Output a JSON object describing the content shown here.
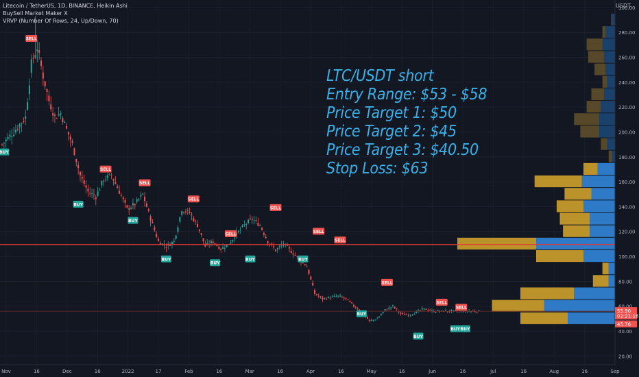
{
  "legend": {
    "line1": "Litecoin / TetherUS, 1D, BINANCE, Heikin Ashi",
    "line2": "BuySell Market Maker X",
    "line3": "VRVP (Number Of Rows, 24, Up/Down, 70)"
  },
  "axis_unit": "USDT",
  "note": {
    "line1": "LTC/USDT short",
    "line2": "Entry Range: $53 - $58",
    "line3": "Price Target 1: $50",
    "line4": "Price Target 2: $45",
    "line5": "Price Target 3: $40.50",
    "line6": "Stop Loss: $63"
  },
  "colors": {
    "background": "#131722",
    "up": "#26a69a",
    "down": "#ef5350",
    "buy_label": "#26a69a",
    "sell_label": "#ef5350",
    "level_line": "#e53935",
    "vp_up": "#2f7fd0",
    "vp_down": "#c49a2b"
  },
  "chart_data": {
    "type": "candlestick",
    "y_axis": {
      "ticks": [
        "300.00",
        "280.00",
        "260.00",
        "240.00",
        "220.00",
        "200.00",
        "180.00",
        "160.00",
        "140.00",
        "120.00",
        "100.00",
        "80.00",
        "60.00",
        "40.00",
        "20.00"
      ],
      "ylim": [
        13,
        306
      ]
    },
    "x_axis": {
      "ticks": [
        "Nov",
        "16",
        "Dec",
        "16",
        "2022",
        "17",
        "Feb",
        "16",
        "Mar",
        "16",
        "Apr",
        "16",
        "May",
        "16",
        "Jun",
        "16",
        "Jul",
        "16",
        "Aug",
        "16",
        "Sep"
      ]
    },
    "price_anchors": [
      [
        0,
        190
      ],
      [
        6,
        200
      ],
      [
        12,
        212
      ],
      [
        15,
        255
      ],
      [
        18,
        268
      ],
      [
        21,
        245
      ],
      [
        24,
        225
      ],
      [
        27,
        212
      ],
      [
        30,
        215
      ],
      [
        33,
        202
      ],
      [
        36,
        190
      ],
      [
        40,
        165
      ],
      [
        44,
        152
      ],
      [
        48,
        148
      ],
      [
        52,
        162
      ],
      [
        56,
        165
      ],
      [
        60,
        152
      ],
      [
        64,
        138
      ],
      [
        68,
        142
      ],
      [
        72,
        150
      ],
      [
        76,
        130
      ],
      [
        80,
        112
      ],
      [
        84,
        108
      ],
      [
        88,
        112
      ],
      [
        92,
        138
      ],
      [
        96,
        135
      ],
      [
        100,
        125
      ],
      [
        104,
        108
      ],
      [
        108,
        112
      ],
      [
        112,
        106
      ],
      [
        116,
        110
      ],
      [
        120,
        118
      ],
      [
        124,
        125
      ],
      [
        128,
        130
      ],
      [
        132,
        125
      ],
      [
        136,
        112
      ],
      [
        140,
        105
      ],
      [
        144,
        110
      ],
      [
        148,
        104
      ],
      [
        152,
        98
      ],
      [
        156,
        92
      ],
      [
        160,
        70
      ],
      [
        164,
        66
      ],
      [
        168,
        67
      ],
      [
        172,
        68
      ],
      [
        176,
        66
      ],
      [
        180,
        60
      ],
      [
        184,
        56
      ],
      [
        188,
        48
      ],
      [
        192,
        50
      ],
      [
        196,
        57
      ],
      [
        200,
        60
      ],
      [
        204,
        54
      ],
      [
        208,
        53
      ],
      [
        212,
        55
      ],
      [
        216,
        58
      ],
      [
        220,
        56
      ]
    ],
    "level_lines": [
      {
        "price": 109.5,
        "color": "#e53935"
      },
      {
        "price": 55.9,
        "color": "#5d2a2a"
      }
    ],
    "price_labels": [
      {
        "price": 55.9,
        "text": "55.90",
        "sub": "02:21:16"
      },
      {
        "price": 45.76,
        "text": "45.76",
        "sub": ""
      }
    ],
    "signals": [
      {
        "type": "BUY",
        "bar": 1,
        "price": 190
      },
      {
        "type": "SELL",
        "bar": 15,
        "price": 268
      },
      {
        "type": "BUY",
        "bar": 39,
        "price": 148
      },
      {
        "type": "SELL",
        "bar": 53,
        "price": 163
      },
      {
        "type": "BUY",
        "bar": 67,
        "price": 135
      },
      {
        "type": "SELL",
        "bar": 73,
        "price": 152
      },
      {
        "type": "BUY",
        "bar": 84,
        "price": 104
      },
      {
        "type": "SELL",
        "bar": 98,
        "price": 139
      },
      {
        "type": "BUY",
        "bar": 109,
        "price": 101
      },
      {
        "type": "SELL",
        "bar": 117,
        "price": 111
      },
      {
        "type": "BUY",
        "bar": 127,
        "price": 104
      },
      {
        "type": "SELL",
        "bar": 140,
        "price": 132
      },
      {
        "type": "BUY",
        "bar": 154,
        "price": 104
      },
      {
        "type": "SELL",
        "bar": 162,
        "price": 113
      },
      {
        "type": "SELL",
        "bar": 173,
        "price": 106
      },
      {
        "type": "BUY",
        "bar": 184,
        "price": 60
      },
      {
        "type": "SELL",
        "bar": 197,
        "price": 72
      },
      {
        "type": "BUY",
        "bar": 213,
        "price": 42
      },
      {
        "type": "SELL",
        "bar": 225,
        "price": 56
      },
      {
        "type": "BUY",
        "bar": 232,
        "price": 48
      },
      {
        "type": "SELL",
        "bar": 235,
        "price": 52
      },
      {
        "type": "BUY",
        "bar": 237,
        "price": 48
      }
    ],
    "volume_profile": [
      {
        "price": 290,
        "up": 0.02,
        "down": 0.005
      },
      {
        "price": 280,
        "up": 0.06,
        "down": 0.02
      },
      {
        "price": 270,
        "up": 0.08,
        "down": 0.1
      },
      {
        "price": 260,
        "up": 0.07,
        "down": 0.1
      },
      {
        "price": 250,
        "up": 0.06,
        "down": 0.07
      },
      {
        "price": 240,
        "up": 0.05,
        "down": 0.03
      },
      {
        "price": 230,
        "up": 0.07,
        "down": 0.08
      },
      {
        "price": 220,
        "up": 0.09,
        "down": 0.09
      },
      {
        "price": 210,
        "up": 0.1,
        "down": 0.16
      },
      {
        "price": 200,
        "up": 0.1,
        "down": 0.12
      },
      {
        "price": 190,
        "up": 0.05,
        "down": 0.04
      },
      {
        "price": 180,
        "up": 0.02,
        "down": 0.02
      },
      {
        "price": 170,
        "up": 0.11,
        "down": 0.09
      },
      {
        "price": 160,
        "up": 0.21,
        "down": 0.3
      },
      {
        "price": 150,
        "up": 0.15,
        "down": 0.17
      },
      {
        "price": 140,
        "up": 0.2,
        "down": 0.17
      },
      {
        "price": 130,
        "up": 0.16,
        "down": 0.19
      },
      {
        "price": 120,
        "up": 0.16,
        "down": 0.17
      },
      {
        "price": 110,
        "up": 0.5,
        "down": 0.5
      },
      {
        "price": 100,
        "up": 0.2,
        "down": 0.3
      },
      {
        "price": 90,
        "up": 0.04,
        "down": 0.04
      },
      {
        "price": 80,
        "up": 0.04,
        "down": 0.1
      },
      {
        "price": 70,
        "up": 0.26,
        "down": 0.34
      },
      {
        "price": 60,
        "up": 0.45,
        "down": 0.33
      },
      {
        "price": 50,
        "up": 0.3,
        "down": 0.3
      }
    ]
  }
}
